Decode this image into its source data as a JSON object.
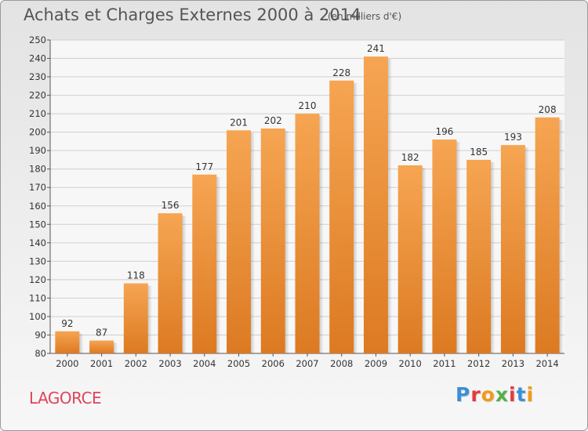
{
  "title": "Achats et Charges Externes 2000 à 2014",
  "subtitle": "(en milliers d'€)",
  "place": "LAGORCE",
  "logo": {
    "letters": [
      "P",
      "r",
      "o",
      "x",
      "i",
      "t",
      "i"
    ],
    "colors": [
      "#3a8fd6",
      "#e53b3b",
      "#f29a17",
      "#53b04a",
      "#e53b3b",
      "#3a8fd6",
      "#f29a17"
    ]
  },
  "colors": {
    "bar_top": "#f6a552",
    "bar_bottom": "#dc7a22",
    "grid": "#cfcfcf",
    "text": "#333333"
  },
  "chart_data": {
    "type": "bar",
    "categories": [
      "2000",
      "2001",
      "2002",
      "2003",
      "2004",
      "2005",
      "2006",
      "2007",
      "2008",
      "2009",
      "2010",
      "2011",
      "2012",
      "2013",
      "2014"
    ],
    "values": [
      92,
      87,
      118,
      156,
      177,
      201,
      202,
      210,
      228,
      241,
      182,
      196,
      185,
      193,
      208
    ],
    "ylim": [
      80,
      250
    ],
    "yticks": [
      80,
      90,
      100,
      110,
      120,
      130,
      140,
      150,
      160,
      170,
      180,
      190,
      200,
      210,
      220,
      230,
      240,
      250
    ],
    "grid": true,
    "data_labels": true
  }
}
